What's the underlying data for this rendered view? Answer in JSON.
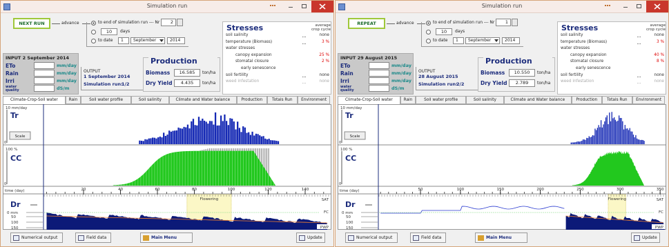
{
  "windows": [
    {
      "title": "Simulation run",
      "run_button": "NEXT RUN",
      "advance": "advance",
      "option_end": "to end of simulation run --- Nr",
      "nr": "2",
      "days_value": "10",
      "days_label": "days",
      "option_date": "to date",
      "date_day": "1",
      "date_month": "September",
      "date_year": "2014",
      "input": {
        "title": "INPUT 2 September 2014",
        "rows": [
          {
            "label": "ETo",
            "unit": "mm/day"
          },
          {
            "label": "Rain",
            "unit": "mm/day"
          },
          {
            "label": "Irri",
            "unit": "mm/day"
          },
          {
            "label": "water quality",
            "unit": "dS/m"
          }
        ]
      },
      "output": {
        "title": "OUTPUT",
        "date": "1 September 2014",
        "run_label": "Simulation run:",
        "run_value": "1/2"
      },
      "production": {
        "title": "Production",
        "rows": [
          {
            "label": "Biomass",
            "value": "16.585",
            "unit": "ton/ha"
          },
          {
            "label": "Dry Yield",
            "value": "4.435",
            "unit": "ton/ha"
          }
        ]
      },
      "stresses": {
        "title": "Stresses",
        "note": "average crop cycle",
        "rows": [
          {
            "label": "soil salinity",
            "value": "none"
          },
          {
            "label": "temperature (Biomass)",
            "value": "3 %"
          },
          {
            "label": "water stresses"
          },
          {
            "label": "canopy expansion",
            "value": "25 %"
          },
          {
            "label": "stomatal closure",
            "value": "2 %"
          },
          {
            "label": "early senescence"
          },
          {
            "label": "soil fertility",
            "value": "none"
          },
          {
            "label": "weed infestation",
            "value": "none"
          }
        ]
      },
      "tabs": [
        "Climate-Crop-Soil water",
        "Rain",
        "Soil water profile",
        "Soil salinity",
        "Climate and Water balance",
        "Production",
        "Totals Run",
        "Environment"
      ],
      "plot": {
        "tr": {
          "unit": "10 mm/day",
          "label": "Tr",
          "zero": "0",
          "button": "Scale"
        },
        "cc": {
          "unit": "100 %",
          "label": "CC",
          "zero": "0"
        },
        "time_label": "time (day)",
        "xticks": [
          20,
          40,
          60,
          80,
          100,
          120,
          140
        ],
        "dr": {
          "label": "Dr",
          "flowering": "Flowering",
          "sat": "SAT",
          "fc": "FC",
          "pwp": "PWP",
          "depth_ticks": [
            "0 mm",
            "50",
            "100",
            "150"
          ]
        }
      },
      "buttons": [
        "Numerical output",
        "Field data",
        "Main Menu",
        "Update"
      ]
    },
    {
      "title": "Simulation run",
      "run_button": "REPEAT",
      "advance": "advance",
      "option_end": "to end of simulation run --- Nr",
      "nr": "1",
      "days_value": "10",
      "days_label": "days",
      "option_date": "to date",
      "date_day": "1",
      "date_month": "September",
      "date_year": "2014",
      "input": {
        "title": "INPUT 29 August 2015",
        "rows": [
          {
            "label": "ETo",
            "unit": "mm/day"
          },
          {
            "label": "Rain",
            "unit": "mm/day"
          },
          {
            "label": "Irri",
            "unit": "mm/day"
          },
          {
            "label": "water quality",
            "unit": "dS/m"
          }
        ]
      },
      "output": {
        "title": "OUTPUT",
        "date": "28 August 2015",
        "run_label": "Simulation run:",
        "run_value": "2/2"
      },
      "production": {
        "title": "Production",
        "rows": [
          {
            "label": "Biomass",
            "value": "10.550",
            "unit": "ton/ha"
          },
          {
            "label": "Dry Yield",
            "value": "2.789",
            "unit": "ton/ha"
          }
        ]
      },
      "stresses": {
        "title": "Stresses",
        "note": "average crop cycle",
        "rows": [
          {
            "label": "soil salinity",
            "value": "none"
          },
          {
            "label": "temperature (Biomass)",
            "value": "3 %"
          },
          {
            "label": "water stresses"
          },
          {
            "label": "canopy expansion",
            "value": "40 %"
          },
          {
            "label": "stomatal closure",
            "value": "8 %"
          },
          {
            "label": "early senescence"
          },
          {
            "label": "soil fertility",
            "value": "none"
          },
          {
            "label": "weed infestation",
            "value": "none"
          }
        ]
      },
      "tabs": [
        "Climate-Crop-Soil water",
        "Rain",
        "Soil water profile",
        "Soil salinity",
        "Climate and Water balance",
        "Production",
        "Totals Run",
        "Environment"
      ],
      "plot": {
        "tr": {
          "unit": "10 mm/day",
          "label": "Tr",
          "zero": "0",
          "button": "Scale"
        },
        "cc": {
          "unit": "100 %",
          "label": "CC",
          "zero": "0"
        },
        "time_label": "time (day)",
        "xticks": [
          50,
          100,
          150,
          200,
          250,
          300,
          350
        ],
        "dr": {
          "label": "Dr",
          "flowering": "Flowering",
          "sat": "SAT",
          "fc": "FC",
          "pwp": "PWP",
          "depth_ticks": [
            "0 mm",
            "50",
            "100",
            "150"
          ]
        }
      },
      "buttons": [
        "Numerical output",
        "Field data",
        "Main Menu",
        "Update"
      ]
    }
  ]
}
